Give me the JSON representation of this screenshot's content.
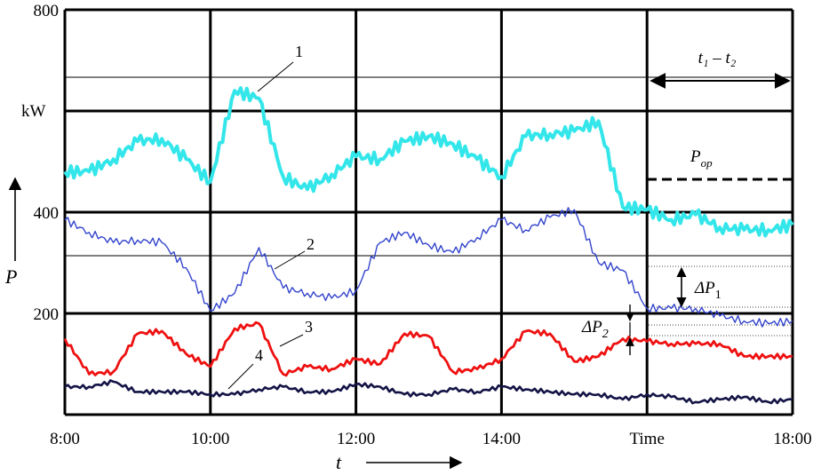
{
  "chart_data": {
    "type": "line",
    "xlabel": "t",
    "ylabel": "P",
    "y_unit": "kW",
    "xlim": [
      "8:00",
      "18:00"
    ],
    "ylim": [
      0,
      800
    ],
    "x_ticks": [
      "8:00",
      "10:00",
      "12:00",
      "14:00",
      "Time",
      "18:00"
    ],
    "y_ticks": [
      "200",
      "400",
      "800"
    ],
    "grid": true,
    "x": [
      "8:00",
      "8:20",
      "8:40",
      "9:00",
      "9:20",
      "9:40",
      "10:00",
      "10:20",
      "10:40",
      "11:00",
      "11:20",
      "11:40",
      "12:00",
      "12:20",
      "12:40",
      "13:00",
      "13:20",
      "13:40",
      "14:00",
      "14:20",
      "14:40",
      "15:00",
      "15:20",
      "15:40",
      "16:00",
      "16:20",
      "16:40",
      "17:00",
      "17:20",
      "17:40",
      "18:00"
    ],
    "series": [
      {
        "name": "1",
        "color": "#33e6ea",
        "values": [
          480,
          480,
          505,
          540,
          545,
          505,
          460,
          640,
          625,
          470,
          445,
          475,
          510,
          505,
          540,
          550,
          535,
          505,
          470,
          550,
          555,
          560,
          580,
          410,
          405,
          385,
          395,
          370,
          365,
          365,
          375
        ]
      },
      {
        "name": "2",
        "color": "#3344cc",
        "values": [
          385,
          360,
          340,
          345,
          340,
          290,
          205,
          240,
          330,
          250,
          240,
          230,
          245,
          340,
          360,
          335,
          320,
          350,
          385,
          365,
          390,
          405,
          300,
          285,
          210,
          210,
          210,
          195,
          185,
          180,
          185
        ]
      },
      {
        "name": "3",
        "color": "#ee1111",
        "values": [
          150,
          80,
          85,
          160,
          165,
          120,
          95,
          170,
          180,
          80,
          95,
          90,
          110,
          100,
          160,
          155,
          85,
          90,
          110,
          165,
          160,
          105,
          115,
          150,
          145,
          140,
          140,
          140,
          115,
          115,
          115
        ]
      },
      {
        "name": "4",
        "color": "#141446",
        "values": [
          55,
          55,
          65,
          45,
          45,
          45,
          40,
          40,
          50,
          55,
          45,
          45,
          60,
          55,
          40,
          40,
          50,
          45,
          55,
          50,
          45,
          40,
          40,
          30,
          40,
          35,
          25,
          30,
          35,
          25,
          30
        ]
      }
    ],
    "reference_lines": [
      672,
      310
    ],
    "annotations": {
      "interval": "t₁ – t₂",
      "p_op": {
        "label": "P",
        "sub": "op",
        "value": 465
      },
      "delta_p1": {
        "label": "ΔP",
        "sub": "1"
      },
      "delta_p2": {
        "label": "ΔP",
        "sub": "2"
      },
      "curve_labels": [
        "1",
        "2",
        "3",
        "4"
      ]
    }
  }
}
